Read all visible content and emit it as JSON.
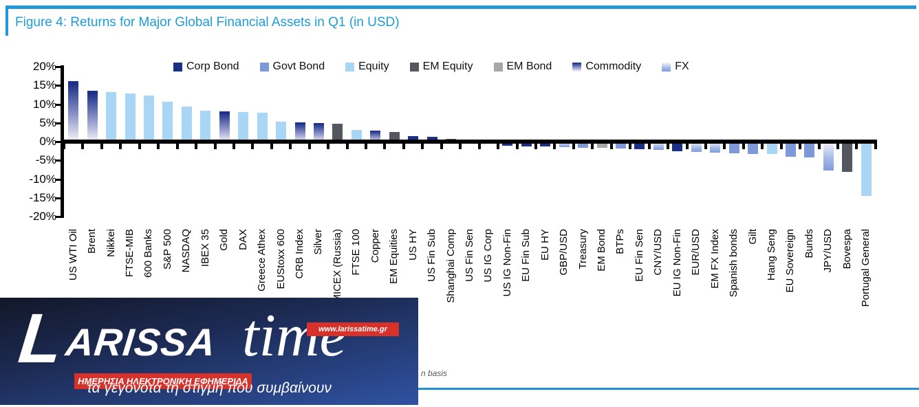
{
  "figure": {
    "title": "Figure 4: Returns for Major Global Financial Assets in Q1 (in USD)",
    "footnote_fragment": "n basis"
  },
  "colors": {
    "accent_blue": "#1C9CD8",
    "corp_bond": "#1B2F87",
    "govt_bond": "#7D99DC",
    "equity": "#A9D6F5",
    "em_equity": "#55575F",
    "em_bond": "#A5A7AB",
    "commodity_gradient_top": "#1B2F87",
    "fx_gradient_bottom": "#7E9CDE",
    "logo_red": "#D6312B",
    "logo_blue": "#2F52A2"
  },
  "chart_data": {
    "type": "bar",
    "title": "Returns for Major Global Financial Assets in Q1 (in USD)",
    "xlabel": "",
    "ylabel": "",
    "ylim": [
      -20,
      20
    ],
    "ytick_step": 5,
    "ytick_labels": [
      "20%",
      "15%",
      "10%",
      "5%",
      "0%",
      "-5%",
      "-10%",
      "-15%",
      "-20%"
    ],
    "grid": false,
    "legend_position": "top-center",
    "legend": [
      {
        "label": "Corp Bond",
        "category": "corp",
        "swatch": "solid"
      },
      {
        "label": "Govt Bond",
        "category": "govt",
        "swatch": "solid"
      },
      {
        "label": "Equity",
        "category": "equity",
        "swatch": "solid"
      },
      {
        "label": "EM Equity",
        "category": "emequity",
        "swatch": "solid"
      },
      {
        "label": "EM Bond",
        "category": "embond",
        "swatch": "solid"
      },
      {
        "label": "Commodity",
        "category": "commodity",
        "swatch": "gradient-down"
      },
      {
        "label": "FX",
        "category": "fx",
        "swatch": "gradient-down"
      }
    ],
    "bars": [
      {
        "label": "US WTI Oil",
        "value": 16.2,
        "category": "commodity"
      },
      {
        "label": "Brent",
        "value": 13.5,
        "category": "commodity"
      },
      {
        "label": "Nikkei",
        "value": 13.2,
        "category": "equity"
      },
      {
        "label": "FTSE-MIB",
        "value": 12.8,
        "category": "equity"
      },
      {
        "label": "600 Banks",
        "value": 12.3,
        "category": "equity"
      },
      {
        "label": "S&P 500",
        "value": 10.6,
        "category": "equity"
      },
      {
        "label": "NASDAQ",
        "value": 9.4,
        "category": "equity"
      },
      {
        "label": "IBEX 35",
        "value": 8.2,
        "category": "equity"
      },
      {
        "label": "Gold",
        "value": 8.1,
        "category": "commodity"
      },
      {
        "label": "DAX",
        "value": 7.9,
        "category": "equity"
      },
      {
        "label": "Greece Athex",
        "value": 7.7,
        "category": "equity"
      },
      {
        "label": "EUStoxx 600",
        "value": 5.4,
        "category": "equity"
      },
      {
        "label": "CRB Index",
        "value": 5.2,
        "category": "commodity"
      },
      {
        "label": "Silver",
        "value": 4.9,
        "category": "commodity"
      },
      {
        "label": "MICEX (Russia)",
        "value": 4.7,
        "category": "emequity"
      },
      {
        "label": "FTSE 100",
        "value": 3.1,
        "category": "equity"
      },
      {
        "label": "Copper",
        "value": 3.0,
        "category": "commodity"
      },
      {
        "label": "EM Equities",
        "value": 2.5,
        "category": "emequity"
      },
      {
        "label": "US HY",
        "value": 1.4,
        "category": "corp"
      },
      {
        "label": "US Fin Sub",
        "value": 1.3,
        "category": "corp"
      },
      {
        "label": "Shanghai Comp",
        "value": 0.7,
        "category": "emequity"
      },
      {
        "label": "US Fin Sen",
        "value": 0.5,
        "category": "corp"
      },
      {
        "label": "US IG Corp",
        "value": -0.1,
        "category": "corp"
      },
      {
        "label": "US IG Non-Fin",
        "value": -0.8,
        "category": "corp"
      },
      {
        "label": "EU Fin Sub",
        "value": -0.9,
        "category": "corp"
      },
      {
        "label": "EU HY",
        "value": -1.0,
        "category": "corp"
      },
      {
        "label": "GBP/USD",
        "value": -1.1,
        "category": "fx"
      },
      {
        "label": "Treasury",
        "value": -1.3,
        "category": "govt"
      },
      {
        "label": "EM Bond",
        "value": -1.3,
        "category": "embond"
      },
      {
        "label": "BTPs",
        "value": -1.4,
        "category": "govt"
      },
      {
        "label": "EU Fin Sen",
        "value": -1.7,
        "category": "corp"
      },
      {
        "label": "CNY/USD",
        "value": -1.8,
        "category": "fx"
      },
      {
        "label": "EU IG Non-Fin",
        "value": -2.2,
        "category": "corp"
      },
      {
        "label": "EUR/USD",
        "value": -2.4,
        "category": "fx"
      },
      {
        "label": "EM FX Index",
        "value": -2.5,
        "category": "fx"
      },
      {
        "label": "Spanish bonds",
        "value": -2.8,
        "category": "govt"
      },
      {
        "label": "Gilt",
        "value": -2.9,
        "category": "govt"
      },
      {
        "label": "Hang Seng",
        "value": -3.0,
        "category": "equity"
      },
      {
        "label": "EU Sovereign",
        "value": -3.6,
        "category": "govt"
      },
      {
        "label": "Bunds",
        "value": -3.9,
        "category": "govt"
      },
      {
        "label": "JPY/USD",
        "value": -7.3,
        "category": "fx"
      },
      {
        "label": "Bovespa",
        "value": -7.7,
        "category": "emequity"
      },
      {
        "label": "Portugal General",
        "value": -14.2,
        "category": "equity"
      }
    ]
  },
  "watermark": {
    "initial": "L",
    "rest": "ARISSA",
    "script": "time",
    "url": "www.larissatime.gr",
    "subtitle": "ΗΜΕΡΗΣΙΑ ΗΛΕΚΤΡΟΝΙΚΗ ΕΦΗΜΕΡΙΔΑ",
    "tagline": "τα γεγονότα τη στιγμή που συμβαίνουν"
  }
}
